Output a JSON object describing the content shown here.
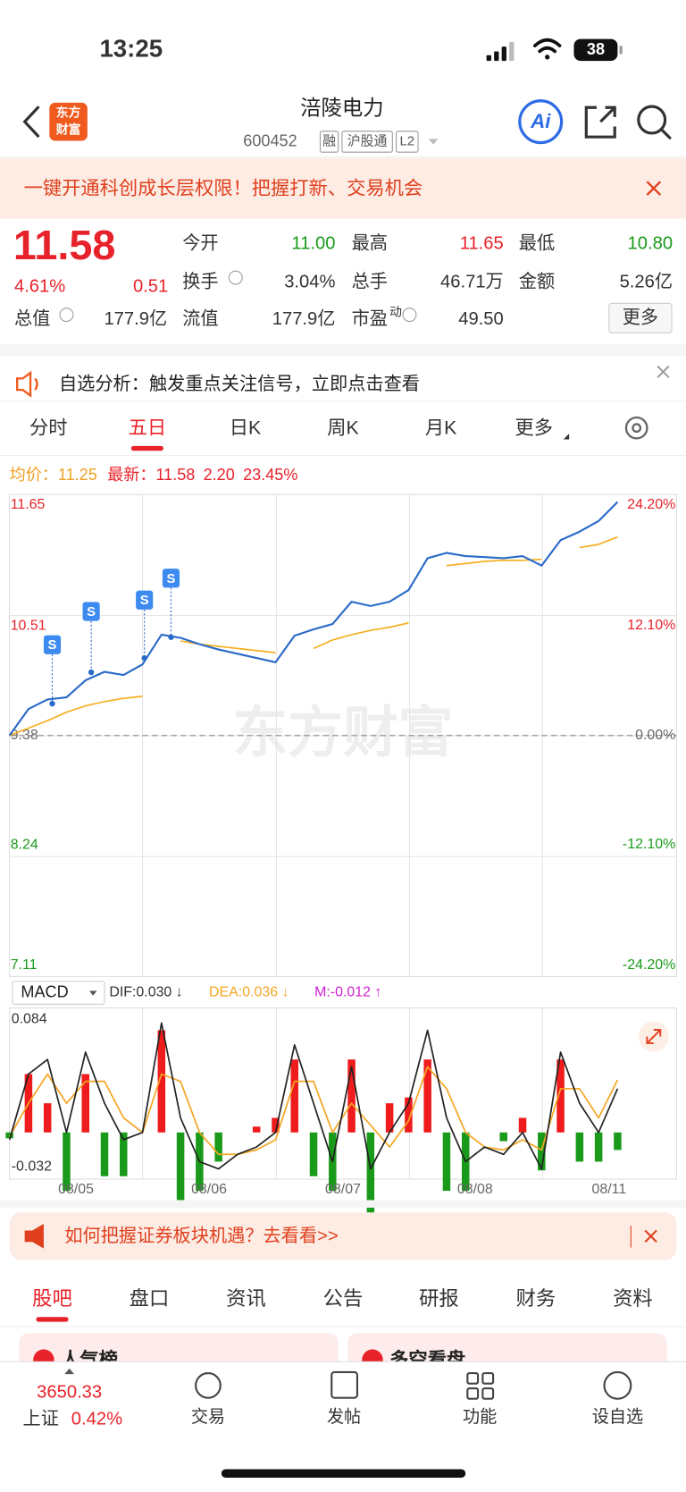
{
  "status_bar": {
    "time": "13:25",
    "battery": "38"
  },
  "header": {
    "logo": [
      "东方",
      "财富"
    ],
    "title": "涪陵电力",
    "code": "600452",
    "badges": [
      "融",
      "沪股通",
      "L2"
    ],
    "ai": "Ai"
  },
  "promo": {
    "text": "一键开通科创成长层权限！把握打新、交易机会"
  },
  "quote": {
    "price": "11.58",
    "change_pct": "4.61%",
    "change": "0.51",
    "fields": [
      {
        "label": "今开",
        "value": "11.00",
        "color": "#1a9a1a"
      },
      {
        "label": "最高",
        "value": "11.65",
        "color": "#e8222a"
      },
      {
        "label": "最低",
        "value": "10.80",
        "color": "#1a9a1a"
      },
      {
        "label": "换手",
        "value": "3.04%",
        "color": "#333333"
      },
      {
        "label": "总手",
        "value": "46.71万",
        "color": "#333333"
      },
      {
        "label": "金额",
        "value": "5.26亿",
        "color": "#333333"
      },
      {
        "label": "流值",
        "value": "177.9亿",
        "color": "#333333"
      },
      {
        "label": "市盈",
        "sup": "动",
        "value": "49.50",
        "color": "#333333"
      }
    ],
    "total_label": "总值",
    "total_value": "177.9亿",
    "more": "更多"
  },
  "notice": {
    "text": "自选分析：触发重点关注信号，立即点击查看"
  },
  "tabs": {
    "items": [
      "分时",
      "五日",
      "日K",
      "周K",
      "月K",
      "更多"
    ],
    "active": 1
  },
  "chart": {
    "avg_label": "均价：",
    "avg": "11.25",
    "last_label": "最新：",
    "last": "11.58",
    "last_change": "2.20",
    "last_pct": "23.45%",
    "watermark": "东方财富",
    "signals": [
      "S",
      "S",
      "S",
      "S"
    ],
    "dates": [
      "08/05",
      "08/06",
      "08/07",
      "08/08",
      "08/11"
    ],
    "ylim": [
      7.11,
      11.65
    ],
    "yticks": [
      7.11,
      8.24,
      9.38,
      10.51,
      11.65
    ],
    "y2lim": [
      -24.2,
      24.2
    ],
    "y2ticks": [
      {
        "value": -24.2,
        "label": "-24.20%"
      },
      {
        "value": -12.1,
        "label": "-12.10%"
      },
      {
        "value": 0,
        "label": "0.00%"
      },
      {
        "value": 12.1,
        "label": "12.10%"
      },
      {
        "value": 24.2,
        "label": "24.20%"
      }
    ],
    "grid": true,
    "series": [
      {
        "name": "最新",
        "color": "#2a6ac8",
        "values": [
          9.38,
          9.63,
          9.72,
          9.74,
          9.9,
          9.98,
          9.95,
          10.05,
          10.33,
          10.3,
          10.24,
          10.19,
          10.15,
          10.11,
          10.07,
          10.32,
          10.38,
          10.43,
          10.64,
          10.6,
          10.64,
          10.75,
          11.05,
          11.1,
          11.07,
          11.06,
          11.05,
          11.07,
          10.98,
          11.22,
          11.3,
          11.4,
          11.58
        ]
      },
      {
        "name": "均价",
        "color": "#f5b022",
        "values": [
          9.38,
          9.45,
          9.52,
          9.6,
          9.66,
          9.7,
          9.73,
          9.75,
          null,
          10.27,
          10.24,
          10.22,
          10.2,
          10.18,
          10.16,
          null,
          10.2,
          10.28,
          10.33,
          10.37,
          10.4,
          10.44,
          null,
          10.98,
          11.0,
          11.02,
          11.03,
          11.03,
          11.04,
          null,
          11.15,
          11.18,
          11.25
        ]
      }
    ]
  },
  "macd": {
    "indicator": "MACD",
    "dif": "DIF:0.030 ↓",
    "dea": "DEA:0.036 ↓",
    "m": "M:-0.012 ↑",
    "ylim": [
      -0.032,
      0.084
    ],
    "yticks": [
      -0.032,
      0.084
    ],
    "series": [
      {
        "name": "DIF",
        "color": "#222222",
        "values": [
          -0.005,
          0.04,
          0.05,
          0.0,
          0.055,
          0.02,
          -0.005,
          0.0,
          0.075,
          0.01,
          -0.02,
          -0.025,
          -0.015,
          -0.01,
          0.0,
          0.06,
          0.02,
          -0.02,
          0.045,
          -0.025,
          0.0,
          0.02,
          0.07,
          0.01,
          -0.02,
          -0.01,
          -0.015,
          0.0,
          -0.025,
          0.055,
          0.02,
          0.0,
          0.03
        ]
      },
      {
        "name": "DEA",
        "color": "#f5a623",
        "values": [
          -0.003,
          0.02,
          0.04,
          0.02,
          0.035,
          0.035,
          0.01,
          0.0,
          0.04,
          0.035,
          0.0,
          -0.015,
          -0.015,
          -0.012,
          -0.005,
          0.035,
          0.035,
          0.0,
          0.02,
          0.005,
          -0.01,
          0.008,
          0.045,
          0.03,
          0.0,
          -0.01,
          -0.012,
          -0.005,
          -0.012,
          0.03,
          0.03,
          0.01,
          0.036
        ]
      },
      {
        "name": "M",
        "values": [
          -0.004,
          0.04,
          0.02,
          -0.04,
          0.04,
          -0.03,
          -0.03,
          0.0,
          0.07,
          -0.05,
          -0.04,
          -0.02,
          0.0,
          0.004,
          0.01,
          0.05,
          -0.03,
          -0.04,
          0.05,
          -0.06,
          0.02,
          0.024,
          0.05,
          -0.04,
          -0.04,
          0.0,
          -0.006,
          0.01,
          -0.026,
          0.05,
          -0.02,
          -0.02,
          -0.012
        ],
        "up_color": "#ee1c1c",
        "down_color": "#1a9a1a"
      }
    ]
  },
  "ad": {
    "text": "如何把握证券板块机遇？去看看>>"
  },
  "section_tabs": {
    "items": [
      "股吧",
      "盘口",
      "资讯",
      "公告",
      "研报",
      "财务",
      "资料"
    ],
    "active": 0
  },
  "cards": [
    "人气榜",
    "多空看盘"
  ],
  "bottom_nav": {
    "index_value": "3650.33",
    "index_name": "上证",
    "index_pct": "0.42%",
    "items": [
      "交易",
      "发帖",
      "功能",
      "设自选"
    ]
  }
}
